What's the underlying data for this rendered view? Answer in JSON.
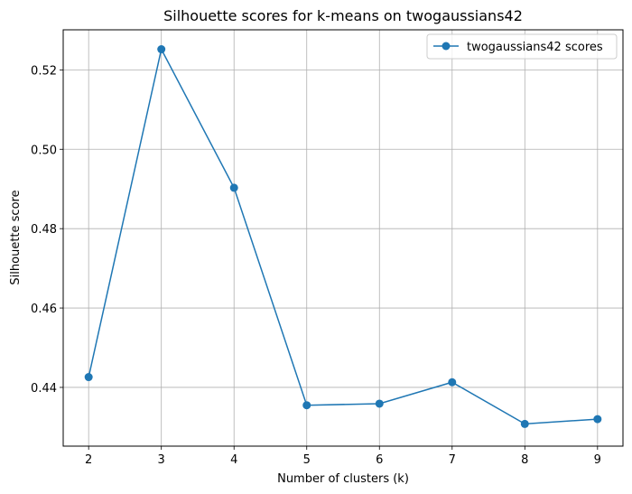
{
  "chart_data": {
    "type": "line",
    "title": "Silhouette scores for k-means on twogaussians42",
    "xlabel": "Number of clusters (k)",
    "ylabel": "Silhouette score",
    "x": [
      2,
      3,
      4,
      5,
      6,
      7,
      8,
      9
    ],
    "x_ticks": [
      "2",
      "3",
      "4",
      "5",
      "6",
      "7",
      "8",
      "9"
    ],
    "y_ticks": [
      "0.44",
      "0.46",
      "0.48",
      "0.50",
      "0.52"
    ],
    "xlim": [
      1.65,
      9.35
    ],
    "ylim": [
      0.4252,
      0.5301
    ],
    "grid": true,
    "legend_position": "top-right",
    "series": [
      {
        "name": "twogaussians42 scores",
        "color": "#1f77b4",
        "marker": "circle",
        "values": [
          0.4426,
          0.5252,
          0.4903,
          0.4355,
          0.4359,
          0.4413,
          0.4308,
          0.432
        ]
      }
    ]
  }
}
